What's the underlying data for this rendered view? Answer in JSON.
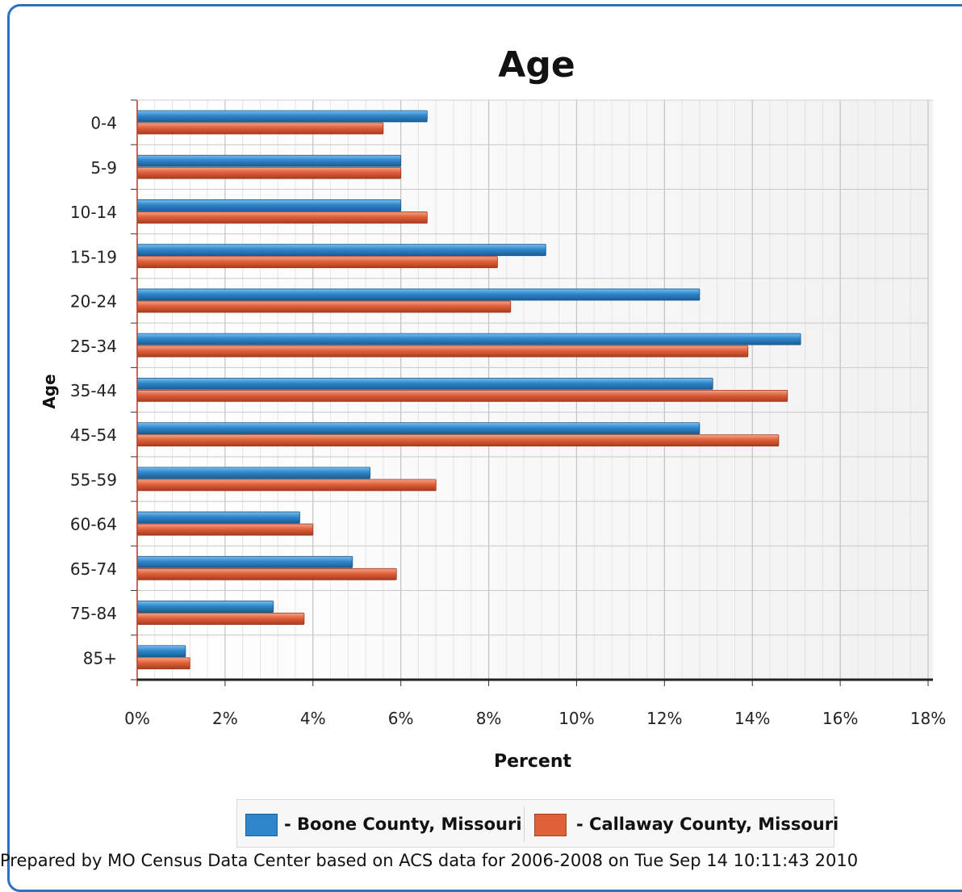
{
  "chart_data": {
    "type": "bar",
    "orientation": "horizontal",
    "title": "Age",
    "xlabel": "Percent",
    "ylabel": "Age",
    "xlim": [
      0,
      18
    ],
    "x_ticks": [
      "0%",
      "2%",
      "4%",
      "6%",
      "8%",
      "10%",
      "12%",
      "14%",
      "16%",
      "18%"
    ],
    "categories": [
      "0-4",
      "5-9",
      "10-14",
      "15-19",
      "20-24",
      "25-34",
      "35-44",
      "45-54",
      "55-59",
      "60-64",
      "65-74",
      "75-84",
      "85+"
    ],
    "series": [
      {
        "name": "- Boone County, Missouri",
        "color": "#2f86c9",
        "values": [
          6.6,
          6.0,
          6.0,
          9.3,
          12.8,
          15.1,
          13.1,
          12.8,
          5.3,
          3.7,
          4.9,
          3.1,
          1.1
        ]
      },
      {
        "name": "- Callaway County, Missouri",
        "color": "#e0603a",
        "values": [
          5.6,
          6.0,
          6.6,
          8.2,
          8.5,
          13.9,
          14.8,
          14.6,
          6.8,
          4.0,
          5.9,
          3.8,
          1.2
        ]
      }
    ],
    "grid": true,
    "legend_position": "bottom"
  },
  "footer": "Prepared by MO Census Data Center based on ACS data for 2006-2008 on Tue Sep 14 10:11:43 2010"
}
